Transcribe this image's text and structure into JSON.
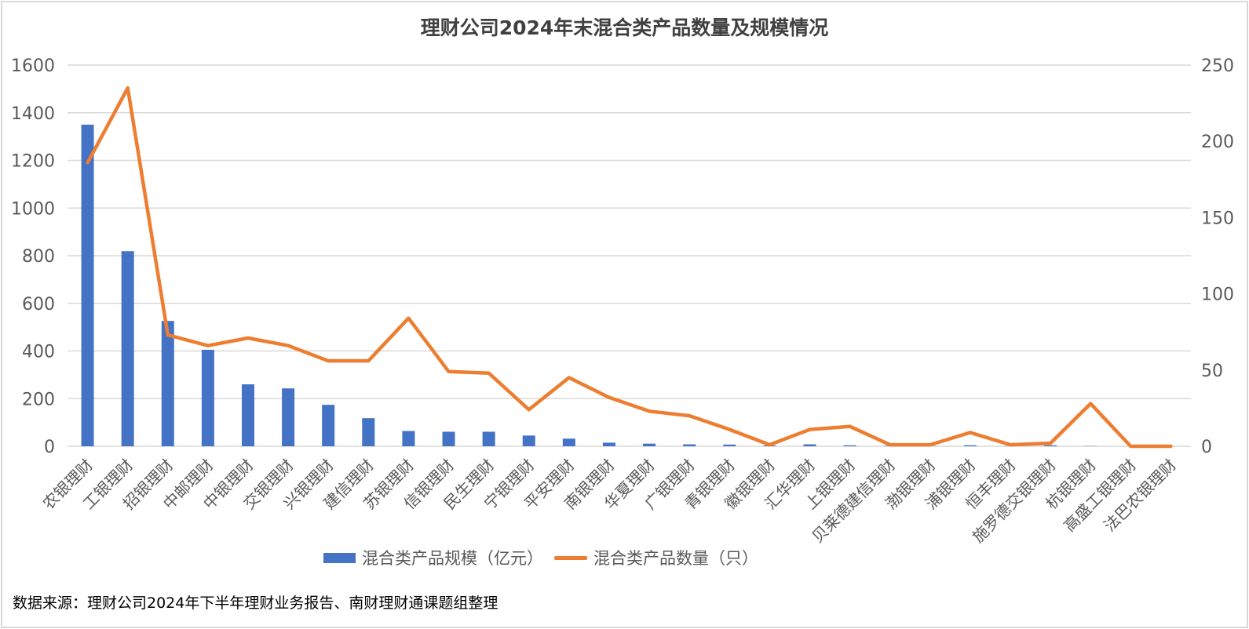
{
  "chart_data": {
    "type": "bar+line",
    "title": "理财公司2024年末混合类产品数量及规模情况",
    "categories": [
      "农银理财",
      "工银理财",
      "招银理财",
      "中邮理财",
      "中银理财",
      "交银理财",
      "兴银理财",
      "建信理财",
      "苏银理财",
      "信银理财",
      "民生理财",
      "宁银理财",
      "平安理财",
      "南银理财",
      "华夏理财",
      "广银理财",
      "青银理财",
      "徽银理财",
      "汇华理财",
      "上银理财",
      "贝莱德建信理财",
      "渤银理财",
      "浦银理财",
      "恒丰理财",
      "施罗德交银理财",
      "杭银理财",
      "高盛工银理财",
      "法巴农银理财"
    ],
    "series": [
      {
        "name": "混合类产品规模（亿元）",
        "type": "bar",
        "axis": "left",
        "color": "#4472C4",
        "values": [
          1350,
          819,
          526,
          405,
          260,
          243,
          174,
          118,
          64,
          61,
          61,
          45,
          32,
          15,
          11,
          8,
          7,
          3,
          8,
          4,
          2,
          1,
          4,
          1,
          4,
          1,
          0,
          0
        ]
      },
      {
        "name": "混合类产品数量（只）",
        "type": "line",
        "axis": "right",
        "color": "#ED7D31",
        "values": [
          186,
          235,
          73,
          66,
          71,
          66,
          56,
          56,
          84,
          49,
          48,
          24,
          45,
          32,
          23,
          20,
          11,
          1,
          11,
          13,
          1,
          1,
          9,
          1,
          2,
          28,
          0,
          0
        ]
      }
    ],
    "left_axis": {
      "ylim": [
        0,
        1600
      ],
      "ticks": [
        "0",
        "200",
        "400",
        "600",
        "800",
        "1000",
        "1200",
        "1400",
        "1600"
      ]
    },
    "right_axis": {
      "ylim": [
        0,
        250
      ],
      "ticks": [
        "0",
        "50",
        "100",
        "150",
        "200",
        "250"
      ]
    },
    "xlabel": "",
    "ylabel": "",
    "grid": true,
    "legend_position": "bottom"
  },
  "legend": {
    "bar_label": "混合类产品规模（亿元）",
    "line_label": "混合类产品数量（只）"
  },
  "source_note": "数据来源：理财公司2024年下半年理财业务报告、南财理财通课题组整理"
}
